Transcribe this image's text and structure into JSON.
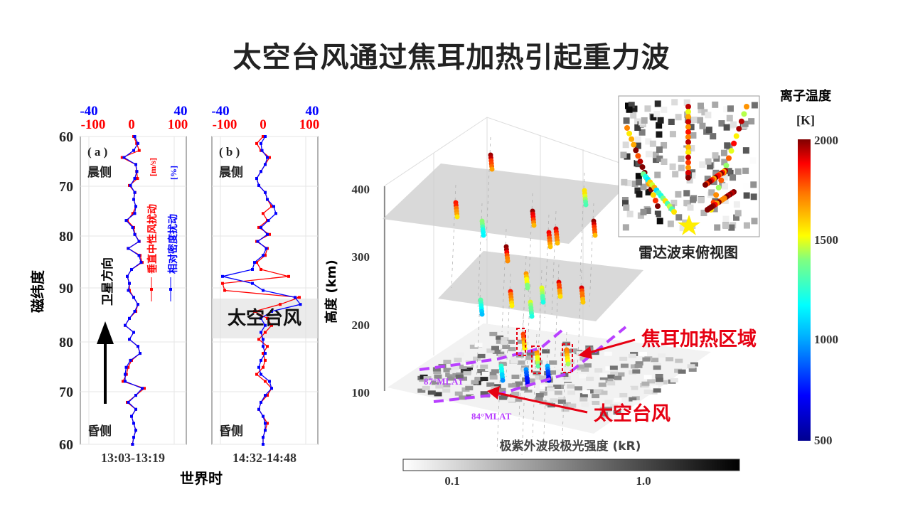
{
  "title": "太空台风通过焦耳加热引起重力波",
  "colors": {
    "wind": "#ff0000",
    "density": "#0000ff",
    "annotation": "#e60012",
    "mlat": "#b940ff"
  },
  "chart_data": [
    {
      "type": "line",
      "panel_label": "( a )",
      "time_label": "13:03-13:19",
      "top_axis_density": {
        "ticks": [
          "-40",
          "40"
        ],
        "range": [
          -40,
          40
        ]
      },
      "top_axis_wind": {
        "ticks": [
          "-100",
          "0",
          "100"
        ],
        "range": [
          -100,
          100
        ]
      },
      "y_ticks": [
        "60",
        "70",
        "80",
        "90",
        "80",
        "70",
        "60"
      ],
      "side_labels": {
        "top": "晨侧",
        "bottom": "昏侧"
      },
      "arrow_label": "卫星方向",
      "legend": [
        {
          "name": "垂直中性风扰动",
          "unit": "[m/s]"
        },
        {
          "name": "相对密度扰动",
          "unit": "[%]"
        }
      ],
      "series": [
        {
          "name": "垂直中性风扰动",
          "values": [
            5,
            12,
            18,
            -22,
            10,
            12,
            14,
            -5,
            8,
            5,
            10,
            3,
            -10,
            5,
            8,
            18,
            -8,
            20,
            25,
            0,
            -10,
            -5,
            -5,
            5,
            15,
            10,
            -5,
            -15,
            5,
            -5,
            15,
            20,
            0,
            -8,
            -12,
            -20,
            30,
            10,
            -10,
            10,
            0,
            5,
            10,
            5,
            2
          ]
        },
        {
          "name": "相对密度扰动",
          "values": [
            3,
            6,
            2,
            -7,
            4,
            5,
            3,
            -1,
            3,
            2,
            4,
            3,
            -5,
            1,
            3,
            7,
            -3,
            7,
            9,
            0,
            -4,
            -2,
            -3,
            2,
            6,
            3,
            -2,
            -6,
            2,
            -2,
            6,
            8,
            -1,
            -5,
            -6,
            -6,
            10,
            4,
            -3,
            4,
            0,
            2,
            4,
            2,
            1
          ]
        }
      ]
    },
    {
      "type": "line",
      "panel_label": "( b )",
      "time_label": "14:32-14:48",
      "top_axis_density": {
        "ticks": [
          "-40",
          "40"
        ],
        "range": [
          -40,
          40
        ]
      },
      "top_axis_wind": {
        "ticks": [
          "-100",
          "0",
          "100"
        ],
        "range": [
          -100,
          100
        ]
      },
      "side_labels": {
        "top": "晨侧",
        "bottom": "昏侧"
      },
      "highlight_label": "太空台风",
      "series": [
        {
          "name": "垂直中性风扰动",
          "values": [
            0,
            -15,
            -5,
            15,
            5,
            -5,
            -15,
            -10,
            5,
            10,
            20,
            0,
            10,
            -10,
            15,
            -15,
            10,
            5,
            -15,
            -5,
            60,
            -95,
            -90,
            85,
            40,
            -20,
            10,
            20,
            5,
            -10,
            10,
            0,
            5,
            0,
            -15,
            5,
            20,
            10,
            -5,
            -10,
            0,
            10,
            5,
            0,
            0
          ]
        },
        {
          "name": "相对密度扰动",
          "values": [
            2,
            -2,
            -1,
            4,
            2,
            -2,
            -6,
            -4,
            2,
            4,
            10,
            12,
            5,
            -2,
            4,
            -5,
            3,
            0,
            -8,
            -10,
            -38,
            -10,
            0,
            30,
            35,
            8,
            -2,
            2,
            -2,
            0,
            0,
            2,
            -2,
            -4,
            -2,
            6,
            8,
            2,
            -2,
            -4,
            0,
            2,
            2,
            0,
            0
          ]
        }
      ]
    },
    {
      "type": "scatter",
      "subtype": "3d",
      "zlabel": "高度 (km)",
      "z_ticks": [
        "100",
        "200",
        "300",
        "400"
      ],
      "inset_label": "雷达波束俯视图",
      "colorbar": {
        "title": "离子温度",
        "unit": "[K]",
        "ticks": [
          "2000",
          "1500",
          "1000",
          "500"
        ],
        "range": [
          500,
          2000
        ]
      },
      "graybar": {
        "title": "极紫外波段极光强度 (kR)",
        "ticks": [
          "0.1",
          "1.0"
        ]
      },
      "annotations": [
        "焦耳加热区域",
        "太空台风",
        "87°MLAT",
        "84°MLAT"
      ]
    }
  ],
  "shared": {
    "ylabel": "磁纬度",
    "xlabel": "世界时"
  }
}
